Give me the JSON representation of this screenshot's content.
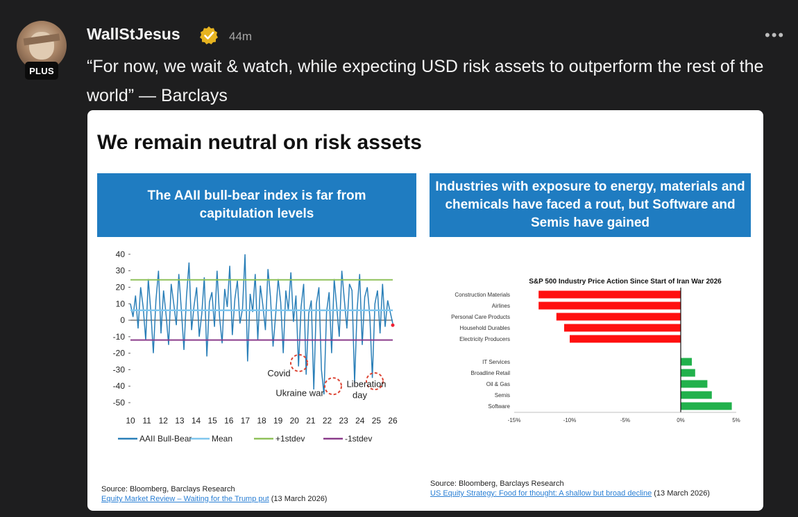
{
  "post": {
    "author": "WallStJesus",
    "badge": "PLUS",
    "time": "44m",
    "more": "•••",
    "text": "“For now, we wait & watch, while expecting USD risk assets to outperform the rest of the world” — Barclays"
  },
  "card": {
    "title": "We remain neutral on risk assets",
    "left_banner": "The AAII bull-bear index is far from capitulation levels",
    "right_banner": "Industries with exposure to energy, materials and chemicals have faced a rout, but Software and Semis have gained",
    "left_source": {
      "line1": "Source: Bloomberg, Barclays Research",
      "link": "Equity Market Review – Waiting for the Trump put",
      "date": "(13 March 2026)"
    },
    "right_source": {
      "line1": "Source: Bloomberg, Barclays Research",
      "link": "US Equity Strategy: Food for thought: A shallow but broad decline",
      "date": "(13 March 2026)"
    }
  },
  "colors": {
    "banner": "#1f7cc1",
    "series": "#2a7fb8",
    "mean": "#7fc6ee",
    "plus1": "#8fc15a",
    "minus1": "#8a3b8a",
    "neg_bar": "#ff1010",
    "pos_bar": "#22b14c"
  },
  "chart_data": [
    {
      "type": "line",
      "x_ticks": [
        "10",
        "11",
        "12",
        "13",
        "14",
        "15",
        "16",
        "17",
        "18",
        "19",
        "20",
        "21",
        "22",
        "23",
        "24",
        "25",
        "26"
      ],
      "y_ticks": [
        "40",
        "30",
        "20",
        "10",
        "0",
        "-10",
        "-20",
        "-30",
        "-40",
        "-50"
      ],
      "ylim": [
        -50,
        45
      ],
      "series": [
        {
          "name": "AAII Bull-Bear",
          "values": [
            10,
            2,
            15,
            -5,
            20,
            8,
            -12,
            25,
            5,
            -20,
            12,
            30,
            -8,
            18,
            3,
            -15,
            22,
            10,
            -3,
            28,
            6,
            -18,
            14,
            35,
            -6,
            9,
            20,
            -10,
            4,
            26,
            -22,
            11,
            17,
            -4,
            30,
            2,
            -14,
            19,
            8,
            33,
            -9,
            13,
            24,
            -2,
            7,
            40,
            -25,
            16,
            5,
            28,
            -12,
            21,
            9,
            -6,
            31,
            14,
            -16,
            3,
            25,
            11,
            -20,
            18,
            6,
            29,
            -1,
            15,
            -28,
            8,
            22,
            -33,
            4,
            12,
            -42,
            10,
            20,
            -30,
            -45,
            5,
            17,
            -20,
            25,
            8,
            -10,
            30,
            12,
            -5,
            22,
            18,
            -38,
            6,
            28,
            -15,
            14,
            20,
            2,
            -35,
            10,
            18,
            -8,
            22,
            -4,
            12,
            5,
            -2
          ]
        },
        {
          "name": "Mean",
          "values": [
            6
          ]
        },
        {
          "name": "+1stdev",
          "values": [
            24.5
          ]
        },
        {
          "name": "-1stdev",
          "values": [
            -12
          ]
        }
      ],
      "annotations": [
        "Covid",
        "Ukraine war",
        "Liberation day"
      ]
    },
    {
      "type": "bar",
      "title": "S&P 500 Industry Price Action Since Start of Iran War 2026",
      "categories": [
        "Construction Materials",
        "Airlines",
        "Personal Care Products",
        "Household Durables",
        "Electricity Producers",
        "IT Services",
        "Broadline Retail",
        "Oil & Gas",
        "Semis",
        "Software"
      ],
      "values": [
        -12.8,
        -12.8,
        -11.2,
        -10.5,
        -10.0,
        1.0,
        1.3,
        2.4,
        2.8,
        4.6
      ],
      "x_ticks": [
        "-15%",
        "-10%",
        "-5%",
        "0%",
        "5%"
      ],
      "xlim": [
        -15,
        5
      ]
    }
  ]
}
